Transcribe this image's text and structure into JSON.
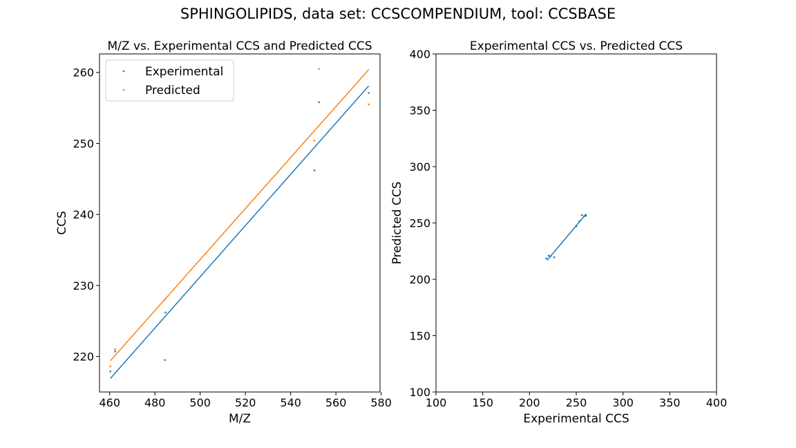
{
  "figure": {
    "title": "SPHINGOLIPIDS, data set: CCSCOMPENDIUM, tool: CCSBASE"
  },
  "colors": {
    "experimental": "#1f77b4",
    "predicted": "#ff7f0e"
  },
  "chart_data": [
    {
      "type": "scatter",
      "title": "M/Z vs. Experimental CCS and Predicted CCS",
      "xlabel": "M/Z",
      "ylabel": "CCS",
      "xlim": [
        455.5,
        579.5
      ],
      "ylim": [
        215.0,
        262.6
      ],
      "xticks": [
        460,
        480,
        500,
        520,
        540,
        560,
        580
      ],
      "yticks": [
        220,
        230,
        240,
        250,
        260
      ],
      "grid": false,
      "legend": {
        "position": "upper-left",
        "entries": [
          "Experimental",
          "Predicted"
        ]
      },
      "series": [
        {
          "name": "Experimental",
          "points": [
            [
              460.3,
              217.9
            ],
            [
              462.4,
              220.7
            ],
            [
              484.4,
              219.5
            ],
            [
              484.7,
              226.2
            ],
            [
              550.5,
              246.2
            ],
            [
              552.5,
              255.8
            ],
            [
              574.5,
              257.1
            ]
          ],
          "trendline": [
            [
              460.3,
              216.9
            ],
            [
              574.5,
              258.1
            ]
          ]
        },
        {
          "name": "Predicted",
          "points": [
            [
              460.3,
              218.6
            ],
            [
              462.4,
              221.0
            ],
            [
              484.4,
              228.0
            ],
            [
              550.5,
              250.4
            ],
            [
              552.5,
              260.5
            ],
            [
              574.5,
              255.5
            ]
          ],
          "trendline": [
            [
              460.3,
              219.4
            ],
            [
              574.5,
              260.4
            ]
          ]
        }
      ]
    },
    {
      "type": "scatter",
      "title": "Experimental CCS vs. Predicted CCS",
      "xlabel": "Experimental CCS",
      "ylabel": "Predicted CCS",
      "xlim": [
        100,
        400
      ],
      "ylim": [
        100,
        400
      ],
      "xticks": [
        100,
        150,
        200,
        250,
        300,
        350,
        400
      ],
      "yticks": [
        100,
        150,
        200,
        250,
        300,
        350,
        400
      ],
      "grid": false,
      "series": [
        {
          "points": [
            [
              218.0,
              218.5
            ],
            [
              220.5,
              221.0
            ],
            [
              222.5,
              220.5
            ],
            [
              226.5,
              219.5
            ],
            [
              250.0,
              247.0
            ],
            [
              253.5,
              251.5
            ],
            [
              256.0,
              257.0
            ],
            [
              258.5,
              256.0
            ],
            [
              260.5,
              256.5
            ]
          ],
          "trendline": [
            [
              219.0,
              217.0
            ],
            [
              260.5,
              258.0
            ]
          ]
        }
      ]
    }
  ]
}
